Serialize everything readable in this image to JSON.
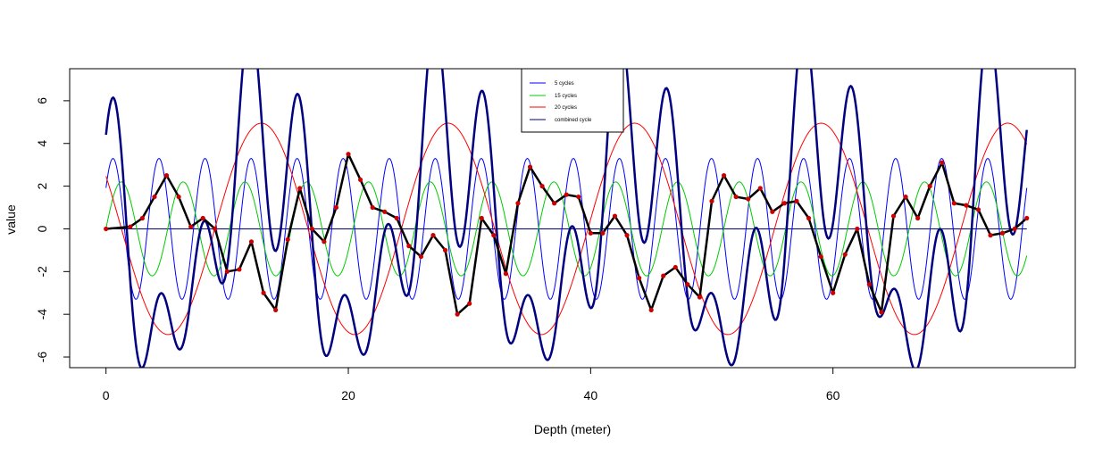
{
  "chart_data": {
    "type": "line",
    "title": "",
    "xlabel": "Depth (meter)",
    "ylabel": "value",
    "xlim": [
      -3,
      80
    ],
    "ylim": [
      -6.5,
      7.5
    ],
    "x_ticks": [
      0,
      20,
      40,
      60
    ],
    "y_ticks": [
      -6,
      -4,
      -2,
      0,
      2,
      4,
      6
    ],
    "x_tick_labels": [
      "0",
      "20",
      "40",
      "60"
    ],
    "y_tick_labels": [
      "-6",
      "-4",
      "-2",
      "0",
      "2",
      "4",
      "6"
    ],
    "x_range": [
      0,
      76
    ],
    "reference_line": {
      "y": 0,
      "color": "#000080"
    },
    "legend": {
      "position": "top-center",
      "entries": [
        {
          "label": "5  cycles",
          "color": "#0000ff"
        },
        {
          "label": "15  cycles",
          "color": "#00cc00"
        },
        {
          "label": "20  cycles",
          "color": "#ff0000"
        },
        {
          "label": "combined cycle",
          "color": "#000080"
        }
      ]
    },
    "series": [
      {
        "name": "5  cycles",
        "kind": "sine",
        "amplitude": 3.3,
        "period": 3.8,
        "phase": 0.95,
        "color": "#0000ff"
      },
      {
        "name": "15  cycles",
        "kind": "sine",
        "amplitude": 2.2,
        "period": 5.1,
        "phase": 1.56,
        "color": "#00cc00"
      },
      {
        "name": "20  cycles",
        "kind": "sine",
        "amplitude": 4.95,
        "period": 15.4,
        "phase": -1.05,
        "color": "#ff0000"
      },
      {
        "name": "combined cycle",
        "kind": "sum",
        "color": "#000080"
      }
    ],
    "observed": {
      "name": "signal",
      "line_color": "#000000",
      "point_color": "#cc0000",
      "points": [
        [
          0,
          0
        ],
        [
          2,
          0.1
        ],
        [
          3,
          0.5
        ],
        [
          4,
          1.5
        ],
        [
          5,
          2.5
        ],
        [
          6,
          1.5
        ],
        [
          7,
          0.1
        ],
        [
          8,
          0.5
        ],
        [
          9,
          0
        ],
        [
          10,
          -2
        ],
        [
          11,
          -1.9
        ],
        [
          12,
          -0.6
        ],
        [
          13,
          -3
        ],
        [
          14,
          -3.8
        ],
        [
          15,
          -0.5
        ],
        [
          16,
          1.9
        ],
        [
          17,
          0
        ],
        [
          18,
          -0.6
        ],
        [
          19,
          1
        ],
        [
          20,
          3.5
        ],
        [
          21,
          2.3
        ],
        [
          22,
          1
        ],
        [
          23,
          0.8
        ],
        [
          24,
          0.5
        ],
        [
          25,
          -0.8
        ],
        [
          26,
          -1.3
        ],
        [
          27,
          -0.3
        ],
        [
          28,
          -1
        ],
        [
          29,
          -4
        ],
        [
          30,
          -3.5
        ],
        [
          31,
          0.5
        ],
        [
          32,
          -0.3
        ],
        [
          33,
          -2.1
        ],
        [
          34,
          1.2
        ],
        [
          35,
          2.9
        ],
        [
          36,
          2
        ],
        [
          37,
          1.2
        ],
        [
          38,
          1.6
        ],
        [
          39,
          1.5
        ],
        [
          40,
          -0.2
        ],
        [
          41,
          -0.2
        ],
        [
          42,
          0.6
        ],
        [
          43,
          -0.3
        ],
        [
          44,
          -2.3
        ],
        [
          45,
          -3.8
        ],
        [
          46,
          -2.2
        ],
        [
          47,
          -1.8
        ],
        [
          48,
          -2.6
        ],
        [
          49,
          -3.2
        ],
        [
          50,
          1.3
        ],
        [
          51,
          2.5
        ],
        [
          52,
          1.5
        ],
        [
          53,
          1.4
        ],
        [
          54,
          1.9
        ],
        [
          55,
          0.8
        ],
        [
          56,
          1.2
        ],
        [
          57,
          1.3
        ],
        [
          58,
          0.5
        ],
        [
          59,
          -1.3
        ],
        [
          60,
          -3
        ],
        [
          61,
          -1.2
        ],
        [
          62,
          0
        ],
        [
          63,
          -2.6
        ],
        [
          64,
          -3.9
        ],
        [
          65,
          0.6
        ],
        [
          66,
          1.5
        ],
        [
          67,
          0.5
        ],
        [
          68,
          2
        ],
        [
          69,
          3.1
        ],
        [
          70,
          1.2
        ],
        [
          71,
          1.1
        ],
        [
          72,
          0.9
        ],
        [
          73,
          -0.3
        ],
        [
          74,
          -0.2
        ],
        [
          75,
          0
        ],
        [
          76,
          0.5
        ]
      ]
    }
  }
}
